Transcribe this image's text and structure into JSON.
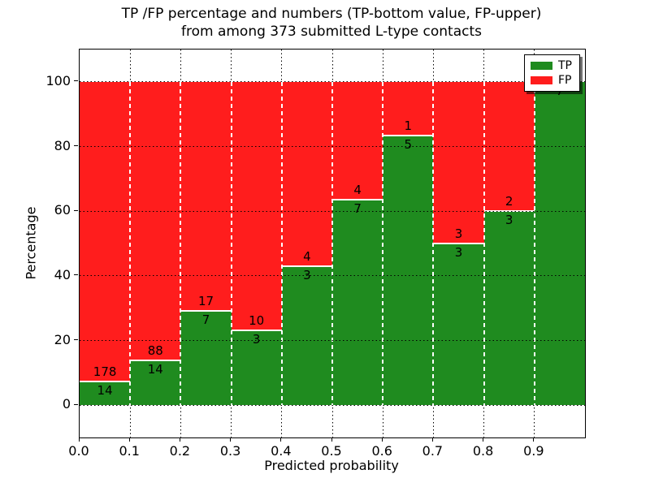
{
  "title": {
    "line1": "TP /FP percentage and numbers (TP-bottom value, FP-upper)",
    "line2": "from among 373 submitted L-type contacts"
  },
  "chart_data": {
    "type": "bar",
    "stacked": true,
    "title": "TP /FP percentage and numbers (TP-bottom value, FP-upper) from among 373 submitted L-type contacts",
    "xlabel": "Predicted probability",
    "ylabel": "Percentage",
    "xlim": [
      0.0,
      1.0
    ],
    "ylim": [
      -10,
      110
    ],
    "x_ticks": [
      "0.0",
      "0.1",
      "0.2",
      "0.3",
      "0.4",
      "0.5",
      "0.6",
      "0.7",
      "0.8",
      "0.9"
    ],
    "y_ticks": [
      0,
      20,
      40,
      60,
      80,
      100
    ],
    "grid": true,
    "total_contacts": 373,
    "colors": {
      "tp": "#1f8b1f",
      "fp": "#ff1d1d"
    },
    "legend": {
      "position": "upper right",
      "entries": [
        {
          "label": "TP",
          "color": "#1f8b1f"
        },
        {
          "label": "FP",
          "color": "#ff1d1d"
        }
      ]
    },
    "bins": [
      {
        "x0": 0.0,
        "x1": 0.1,
        "tp": 14,
        "fp": 178,
        "tp_percent": 7.3
      },
      {
        "x0": 0.1,
        "x1": 0.2,
        "tp": 14,
        "fp": 88,
        "tp_percent": 13.7
      },
      {
        "x0": 0.2,
        "x1": 0.3,
        "tp": 7,
        "fp": 17,
        "tp_percent": 29.2
      },
      {
        "x0": 0.3,
        "x1": 0.4,
        "tp": 3,
        "fp": 10,
        "tp_percent": 23.1
      },
      {
        "x0": 0.4,
        "x1": 0.5,
        "tp": 3,
        "fp": 4,
        "tp_percent": 42.9
      },
      {
        "x0": 0.5,
        "x1": 0.6,
        "tp": 7,
        "fp": 4,
        "tp_percent": 63.6
      },
      {
        "x0": 0.6,
        "x1": 0.7,
        "tp": 5,
        "fp": 1,
        "tp_percent": 83.3
      },
      {
        "x0": 0.7,
        "x1": 0.8,
        "tp": 3,
        "fp": 3,
        "tp_percent": 50.0
      },
      {
        "x0": 0.8,
        "x1": 0.9,
        "tp": 3,
        "fp": 2,
        "tp_percent": 60.0
      },
      {
        "x0": 0.9,
        "x1": 1.0,
        "tp": 7,
        "fp": 0,
        "tp_percent": 100.0
      }
    ]
  }
}
